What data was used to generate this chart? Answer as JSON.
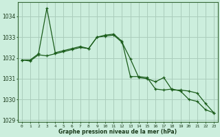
{
  "title": "Graphe pression niveau de la mer (hPa)",
  "background_color": "#cceedd",
  "grid_color": "#aaccbb",
  "line_color": "#1a5c1a",
  "x_labels": [
    "0",
    "1",
    "2",
    "3",
    "4",
    "5",
    "6",
    "7",
    "8",
    "9",
    "10",
    "11",
    "12",
    "13",
    "14",
    "15",
    "16",
    "17",
    "18",
    "19",
    "20",
    "21",
    "22",
    "23"
  ],
  "series1_x": [
    0,
    1,
    2,
    3,
    4,
    5,
    6,
    7,
    8,
    9,
    10,
    11,
    12,
    13,
    14,
    15,
    16,
    17,
    18,
    19,
    20,
    21,
    22,
    23
  ],
  "series1_y": [
    1031.9,
    1031.9,
    1032.2,
    1034.4,
    1032.25,
    1032.35,
    1032.45,
    1032.55,
    1032.45,
    1033.0,
    1033.1,
    1033.15,
    1032.8,
    1031.1,
    1031.1,
    1031.05,
    1030.5,
    1030.45,
    1030.5,
    1030.4,
    1030.0,
    1029.9,
    1029.5,
    1029.35
  ],
  "series2_x": [
    0,
    1,
    2,
    3,
    4,
    5,
    6,
    7,
    8,
    9,
    10,
    11,
    12,
    13,
    14,
    15,
    16,
    17,
    18,
    19,
    20,
    21,
    22,
    23
  ],
  "series2_y": [
    1031.9,
    1031.85,
    1032.15,
    1032.1,
    1032.2,
    1032.3,
    1032.4,
    1032.5,
    1032.45,
    1033.0,
    1033.05,
    1033.1,
    1032.75,
    1031.95,
    1031.05,
    1031.0,
    1030.85,
    1031.05,
    1030.45,
    1030.45,
    1030.4,
    1030.3,
    1029.8,
    1029.35
  ],
  "ylim": [
    1028.9,
    1034.7
  ],
  "yticks": [
    1029,
    1030,
    1031,
    1032,
    1033,
    1034
  ],
  "figsize": [
    3.2,
    2.0
  ],
  "dpi": 100
}
